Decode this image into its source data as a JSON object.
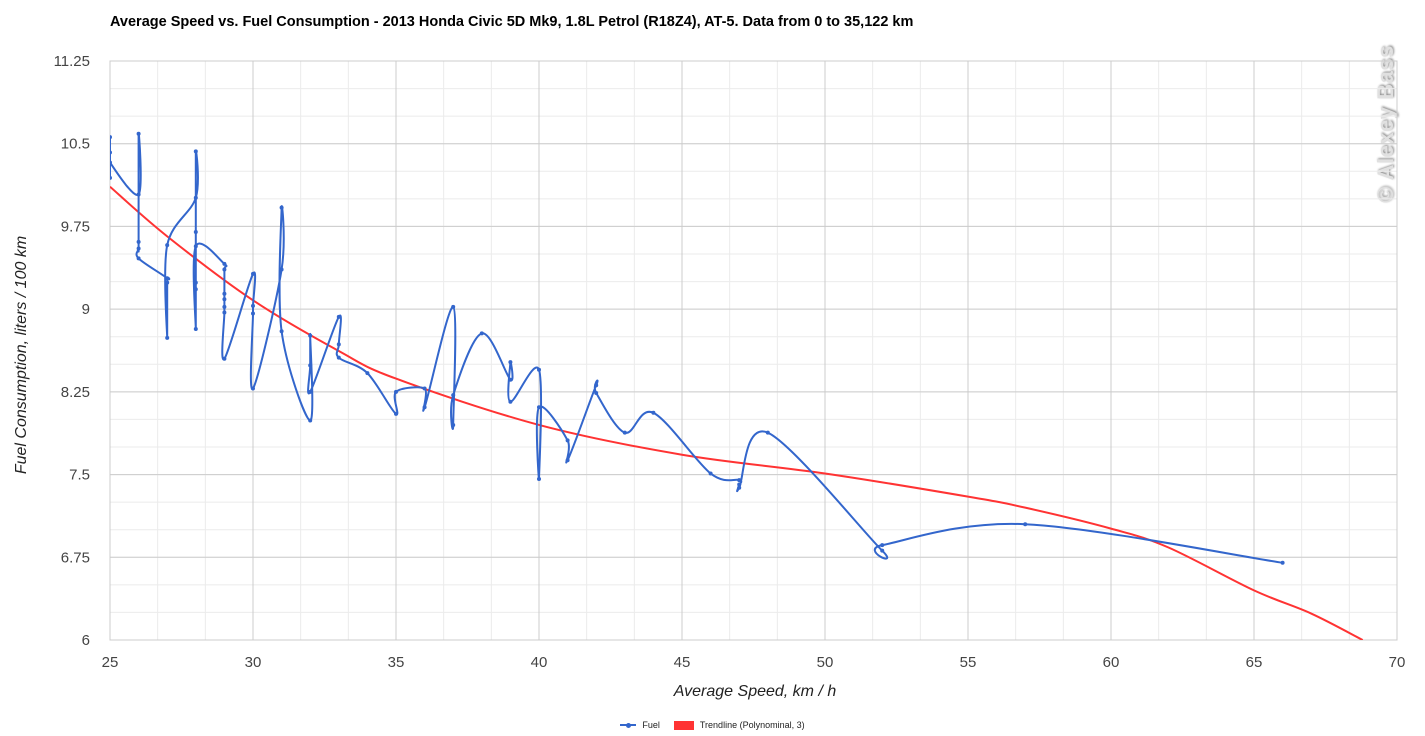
{
  "chart_data": {
    "type": "line",
    "title": "Average Speed vs. Fuel Consumption - 2013 Honda Civic 5D Mk9, 1.8L Petrol (R18Z4), AT-5. Data from 0 to 35,122 km",
    "xlabel": "Average Speed, km / h",
    "ylabel": "Fuel Consumption, liters / 100 km",
    "xlim": [
      25,
      70
    ],
    "ylim": [
      6,
      11.25
    ],
    "x_ticks": [
      25,
      30,
      35,
      40,
      45,
      50,
      55,
      60,
      65,
      70
    ],
    "y_ticks": [
      "6",
      "6.75",
      "7.5",
      "8.25",
      "9",
      "9.75",
      "10.5",
      "11.25"
    ],
    "y_tick_values": [
      6,
      6.75,
      7.5,
      8.25,
      9,
      9.75,
      10.5,
      11.25
    ],
    "grid": true,
    "minor_grid": true,
    "legend_position": "bottom",
    "series": [
      {
        "name": "Fuel",
        "color": "#3366cc",
        "points": [
          [
            25,
            10.19
          ],
          [
            25,
            10.56
          ],
          [
            25,
            10.42
          ],
          [
            25,
            10.33
          ],
          [
            26,
            10.04
          ],
          [
            26,
            10.59
          ],
          [
            26,
            9.61
          ],
          [
            26,
            9.55
          ],
          [
            26,
            9.46
          ],
          [
            27,
            9.28
          ],
          [
            27,
            9.24
          ],
          [
            27,
            8.74
          ],
          [
            27,
            9.58
          ],
          [
            28,
            10.01
          ],
          [
            28,
            10.43
          ],
          [
            28,
            9.7
          ],
          [
            28,
            9.24
          ],
          [
            28,
            9.18
          ],
          [
            28,
            8.82
          ],
          [
            28,
            9.57
          ],
          [
            29,
            9.41
          ],
          [
            29,
            9.36
          ],
          [
            29,
            9.14
          ],
          [
            29,
            9.09
          ],
          [
            29,
            9.02
          ],
          [
            29,
            8.97
          ],
          [
            29,
            8.55
          ],
          [
            30,
            9.32
          ],
          [
            30,
            9.03
          ],
          [
            30,
            8.96
          ],
          [
            30,
            8.28
          ],
          [
            31,
            9.36
          ],
          [
            31,
            9.92
          ],
          [
            31,
            8.8
          ],
          [
            32,
            7.99
          ],
          [
            32,
            8.76
          ],
          [
            32,
            8.49
          ],
          [
            32,
            8.25
          ],
          [
            33,
            8.93
          ],
          [
            33,
            8.68
          ],
          [
            33,
            8.56
          ],
          [
            34,
            8.42
          ],
          [
            35,
            8.05
          ],
          [
            35,
            8.25
          ],
          [
            36,
            8.28
          ],
          [
            36,
            8.11
          ],
          [
            37,
            9.02
          ],
          [
            37,
            7.95
          ],
          [
            37,
            8.22
          ],
          [
            38,
            8.78
          ],
          [
            39,
            8.36
          ],
          [
            39,
            8.52
          ],
          [
            39,
            8.16
          ],
          [
            40,
            8.45
          ],
          [
            40,
            7.46
          ],
          [
            40,
            8.11
          ],
          [
            41,
            7.81
          ],
          [
            41,
            7.63
          ],
          [
            42,
            8.31
          ],
          [
            42,
            8.24
          ],
          [
            43,
            7.88
          ],
          [
            44,
            8.06
          ],
          [
            46,
            7.51
          ],
          [
            47,
            7.45
          ],
          [
            47,
            7.41
          ],
          [
            47,
            7.38
          ],
          [
            48,
            7.88
          ],
          [
            52,
            6.81
          ],
          [
            52,
            6.86
          ],
          [
            57,
            7.05
          ],
          [
            66,
            6.7
          ]
        ]
      },
      {
        "name": "Trendline (Polynominal, 3)",
        "color": "#ff3333",
        "points": [
          [
            25,
            10.11
          ],
          [
            27,
            9.66
          ],
          [
            30,
            9.08
          ],
          [
            33,
            8.62
          ],
          [
            35,
            8.37
          ],
          [
            40,
            7.95
          ],
          [
            45,
            7.68
          ],
          [
            50,
            7.51
          ],
          [
            55,
            7.3
          ],
          [
            57,
            7.2
          ],
          [
            60,
            7.01
          ],
          [
            62,
            6.84
          ],
          [
            65,
            6.45
          ],
          [
            67,
            6.24
          ],
          [
            68.8,
            6.0
          ]
        ]
      }
    ]
  },
  "header": {
    "title": "Average Speed vs. Fuel Consumption - 2013 Honda Civic 5D Mk9, 1.8L Petrol (R18Z4), AT-5. Data from 0 to 35,122 km"
  },
  "watermark": "© Alexey Bass",
  "axes": {
    "x_title": "Average Speed, km / h",
    "y_title": "Fuel Consumption, liters / 100 km"
  },
  "legend": {
    "items": [
      {
        "label": "Fuel",
        "color": "#3366cc"
      },
      {
        "label": "Trendline (Polynominal, 3)",
        "color": "#ff3333"
      }
    ]
  }
}
